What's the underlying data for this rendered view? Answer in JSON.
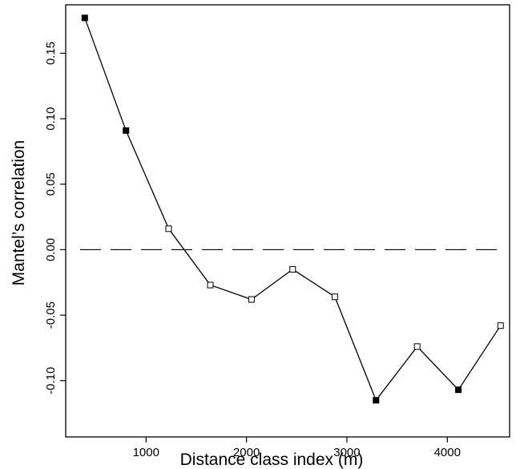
{
  "chart_data": {
    "type": "line",
    "title": "",
    "xlabel": "Distance class index (m)",
    "ylabel": "Mantel’s correlation",
    "xlim": [
      200,
      4620
    ],
    "ylim": [
      -0.143,
      0.187
    ],
    "xticks": [
      1000,
      2000,
      3000,
      4000
    ],
    "xtick_labels": [
      "1000",
      "2000",
      "3000",
      "4000"
    ],
    "yticks": [
      -0.1,
      -0.05,
      0.0,
      0.05,
      0.1,
      0.15
    ],
    "ytick_labels": [
      "-0.10",
      "-0.05",
      "0.00",
      "0.05",
      "0.10",
      "0.15"
    ],
    "reference_line": {
      "y": 0.0,
      "style": "dashed"
    },
    "grid": false,
    "series": [
      {
        "x": [
          390,
          800,
          1225,
          1640,
          2050,
          2460,
          2880,
          3290,
          3700,
          4110,
          4530
        ],
        "y": [
          0.177,
          0.091,
          0.016,
          -0.027,
          -0.038,
          -0.015,
          -0.036,
          -0.115,
          -0.074,
          -0.107,
          -0.058
        ],
        "significant": [
          true,
          true,
          false,
          false,
          false,
          false,
          false,
          true,
          false,
          true,
          false
        ]
      }
    ],
    "marker_colors": {
      "significant": "#000000",
      "not_significant": "#ffffff"
    },
    "line_color": "#000000"
  }
}
